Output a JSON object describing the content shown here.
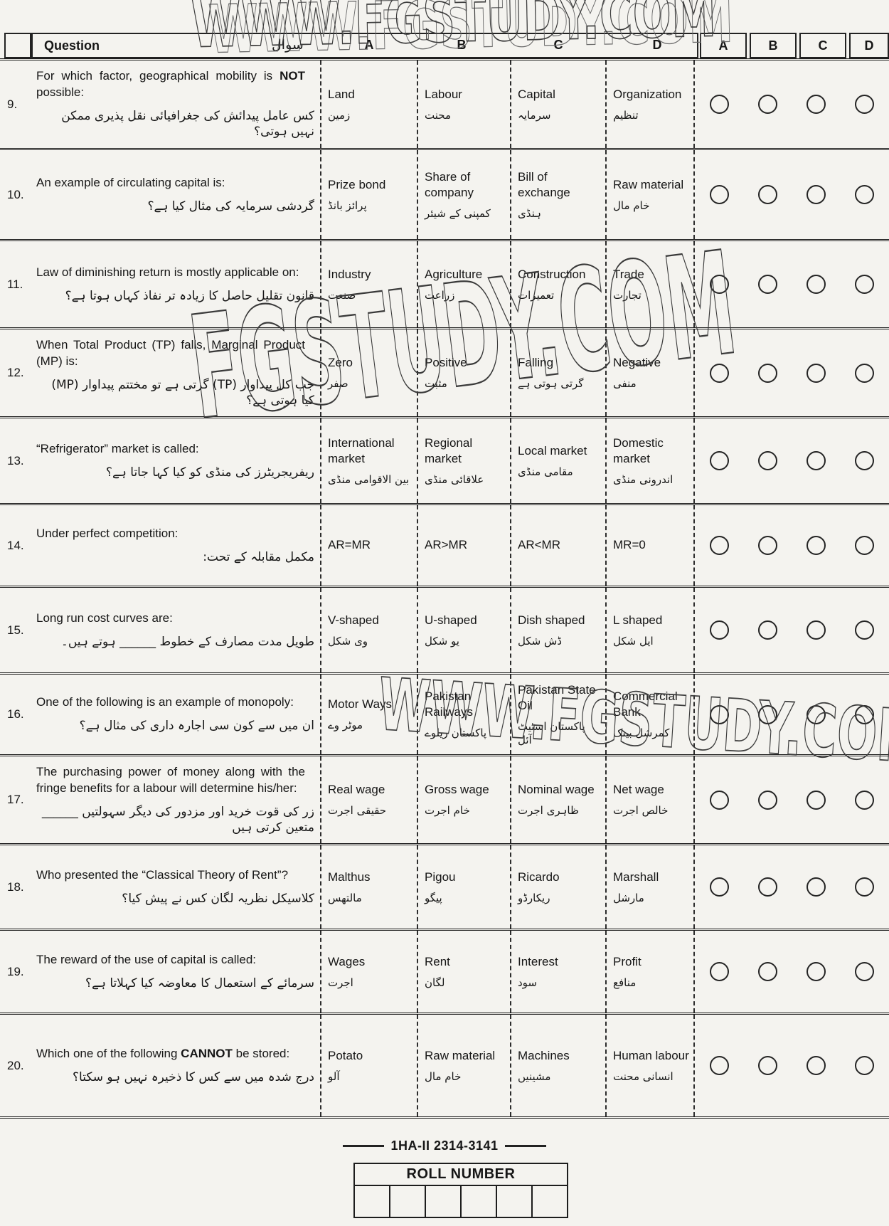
{
  "watermarks": {
    "top": "WWW.FGSTUDY.COM",
    "middle": "FGSTUDY.COM",
    "lower": "WWW.FGSTUDY.COM"
  },
  "header": {
    "question_label": "Question",
    "question_label_urdu": "سوال",
    "option_cols": [
      "A",
      "B",
      "C",
      "D"
    ],
    "answer_cols": [
      "A",
      "B",
      "C",
      "D"
    ]
  },
  "questions": [
    {
      "number": "9.",
      "english": "For which factor, geographical mobility is **NOT** possible:",
      "urdu": "کس عامل پیدائش کی جغرافیائی نقل پذیری ممکن نہیں ہوتی؟",
      "options": [
        {
          "en": "Land",
          "ur": "زمین"
        },
        {
          "en": "Labour",
          "ur": "محنت"
        },
        {
          "en": "Capital",
          "ur": "سرمایہ"
        },
        {
          "en": "Organization",
          "ur": "تنظیم"
        }
      ]
    },
    {
      "number": "10.",
      "english": "An example of circulating capital is:",
      "urdu": "گردشی سرمایہ کی مثال کیا ہے؟",
      "options": [
        {
          "en": "Prize bond",
          "ur": "پرائز بانڈ"
        },
        {
          "en": "Share of company",
          "ur": "کمپنی کے شیئر"
        },
        {
          "en": "Bill of exchange",
          "ur": "ہنڈی"
        },
        {
          "en": "Raw material",
          "ur": "خام مال"
        }
      ]
    },
    {
      "number": "11.",
      "english": "Law of diminishing return is mostly applicable on:",
      "urdu": "قانون تقلیل حاصل کا زیادہ تر نفاذ کہاں ہوتا ہے؟",
      "options": [
        {
          "en": "Industry",
          "ur": "صنعت"
        },
        {
          "en": "Agriculture",
          "ur": "زراعت"
        },
        {
          "en": "Construction",
          "ur": "تعمیرات"
        },
        {
          "en": "Trade",
          "ur": "تجارت"
        }
      ]
    },
    {
      "number": "12.",
      "english": "When Total Product (TP) falls, Marginal Product (MP) is:",
      "urdu": "جب کل پیداوار (TP) گرتی ہے تو مختتم پیداوار (MP) کیا ہوتی ہے؟",
      "options": [
        {
          "en": "Zero",
          "ur": "صفر"
        },
        {
          "en": "Positive",
          "ur": "مثبت"
        },
        {
          "en": "Falling",
          "ur": "گرتی ہوتی ہے"
        },
        {
          "en": "Negative",
          "ur": "منفی"
        }
      ]
    },
    {
      "number": "13.",
      "english": "“Refrigerator” market is called:",
      "urdu": "ریفریجریٹرز کی منڈی کو کیا کہا جاتا ہے؟",
      "options": [
        {
          "en": "International market",
          "ur": "بین الاقوامی منڈی"
        },
        {
          "en": "Regional market",
          "ur": "علاقائی منڈی"
        },
        {
          "en": "Local market",
          "ur": "مقامی منڈی"
        },
        {
          "en": "Domestic market",
          "ur": "اندرونی منڈی"
        }
      ]
    },
    {
      "number": "14.",
      "english": "Under perfect competition:",
      "urdu": "مکمل مقابلہ کے تحت:",
      "options": [
        {
          "en": "AR=MR",
          "ur": ""
        },
        {
          "en": "AR>MR",
          "ur": ""
        },
        {
          "en": "AR<MR",
          "ur": ""
        },
        {
          "en": "MR=0",
          "ur": ""
        }
      ]
    },
    {
      "number": "15.",
      "english": "Long run cost curves are:",
      "urdu": "طویل مدت مصارف کے خطوط ______ ہوتے ہیں۔",
      "options": [
        {
          "en": "V-shaped",
          "ur": "وی شکل"
        },
        {
          "en": "U-shaped",
          "ur": "یو شکل"
        },
        {
          "en": "Dish shaped",
          "ur": "ڈش شکل"
        },
        {
          "en": "L shaped",
          "ur": "ایل شکل"
        }
      ]
    },
    {
      "number": "16.",
      "english": "One of the following is an example of monopoly:",
      "urdu": "ان میں سے کون سی اجارہ داری کی مثال ہے؟",
      "options": [
        {
          "en": "Motor Ways",
          "ur": "موٹر وے"
        },
        {
          "en": "Pakistan Railways",
          "ur": "پاکستان ریلوے"
        },
        {
          "en": "Pakistan State Oil",
          "ur": "پاکستان اسٹیٹ آئل"
        },
        {
          "en": "Commercial Bank",
          "ur": "کمرشل بینک"
        }
      ]
    },
    {
      "number": "17.",
      "english": "The purchasing power of money along with the fringe benefits for a labour will determine his/her:",
      "urdu": "زر کی قوت خرید اور مزدور کی دیگر سہولتیں ______ متعین کرتی ہیں",
      "options": [
        {
          "en": "Real wage",
          "ur": "حقیقی اجرت"
        },
        {
          "en": "Gross wage",
          "ur": "خام اجرت"
        },
        {
          "en": "Nominal wage",
          "ur": "ظاہری اجرت"
        },
        {
          "en": "Net wage",
          "ur": "خالص اجرت"
        }
      ]
    },
    {
      "number": "18.",
      "english": "Who presented the “Classical Theory of Rent”?",
      "urdu": "کلاسیکل نظریہ لگان کس نے پیش کیا؟",
      "options": [
        {
          "en": "Malthus",
          "ur": "مالتھس"
        },
        {
          "en": "Pigou",
          "ur": "پیگو"
        },
        {
          "en": "Ricardo",
          "ur": "ریکارڈو"
        },
        {
          "en": "Marshall",
          "ur": "مارشل"
        }
      ]
    },
    {
      "number": "19.",
      "english": "The reward of the use of capital is called:",
      "urdu": "سرمائے کے استعمال کا معاوضہ کیا کہلاتا ہے؟",
      "options": [
        {
          "en": "Wages",
          "ur": "اجرت"
        },
        {
          "en": "Rent",
          "ur": "لگان"
        },
        {
          "en": "Interest",
          "ur": "سود"
        },
        {
          "en": "Profit",
          "ur": "منافع"
        }
      ]
    },
    {
      "number": "20.",
      "english": "Which one of the following **CANNOT** be stored:",
      "urdu": "درج شدہ میں سے کس کا ذخیرہ نہیں ہو سکتا؟",
      "options": [
        {
          "en": "Potato",
          "ur": "آلو"
        },
        {
          "en": "Raw material",
          "ur": "خام مال"
        },
        {
          "en": "Machines",
          "ur": "مشینیں"
        },
        {
          "en": "Human labour",
          "ur": "انسانی محنت"
        }
      ]
    }
  ],
  "footer": {
    "paper_code": "1HA-II 2314-3141",
    "roll_number_label": "ROLL NUMBER",
    "roll_cells": 6
  }
}
